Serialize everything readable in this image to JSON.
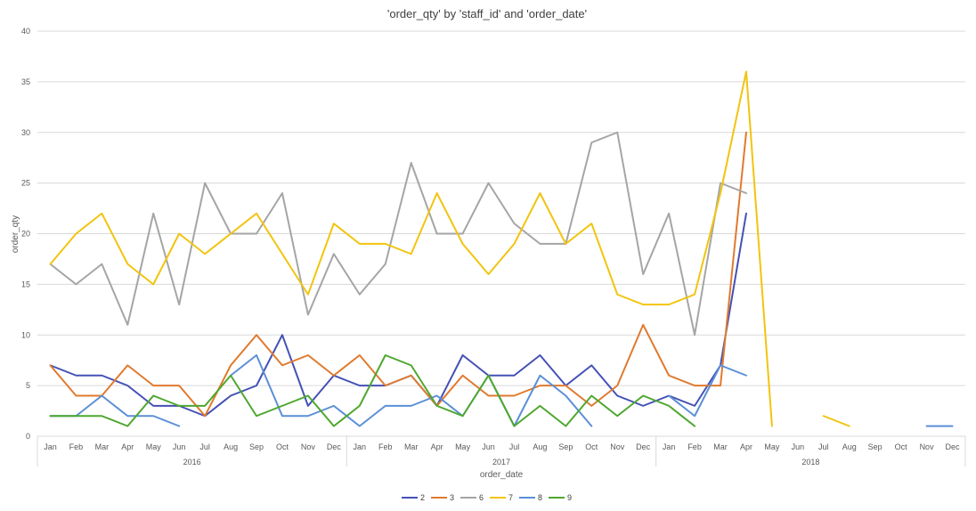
{
  "chart_data": {
    "type": "line",
    "title": "'order_qty' by 'staff_id' and 'order_date'",
    "xlabel": "order_date",
    "ylabel": "order_qty",
    "ylim": [
      0,
      40
    ],
    "yticks": [
      "0",
      "5",
      "10",
      "15",
      "20",
      "25",
      "30",
      "35",
      "40"
    ],
    "months": [
      "Jan",
      "Feb",
      "Mar",
      "Apr",
      "May",
      "Jun",
      "Jul",
      "Aug",
      "Sep",
      "Oct",
      "Nov",
      "Dec"
    ],
    "years": [
      "2016",
      "2017",
      "2018"
    ],
    "grid": true,
    "legend_position": "bottom",
    "series": [
      {
        "name": "2",
        "color": "#4451b5",
        "values": [
          7,
          6,
          6,
          5,
          3,
          3,
          2,
          4,
          5,
          10,
          3,
          6,
          5,
          5,
          6,
          3,
          8,
          6,
          6,
          8,
          5,
          7,
          4,
          3,
          4,
          3,
          7,
          22,
          null,
          null,
          null,
          null,
          null,
          null,
          null,
          null
        ]
      },
      {
        "name": "3",
        "color": "#e07a2e",
        "values": [
          7,
          4,
          4,
          7,
          5,
          5,
          2,
          7,
          10,
          7,
          8,
          6,
          8,
          5,
          6,
          3,
          6,
          4,
          4,
          5,
          5,
          3,
          5,
          11,
          6,
          5,
          5,
          30,
          null,
          null,
          null,
          null,
          null,
          null,
          null,
          null
        ]
      },
      {
        "name": "6",
        "color": "#a5a5a5",
        "values": [
          17,
          15,
          17,
          11,
          22,
          13,
          25,
          20,
          20,
          24,
          12,
          18,
          14,
          17,
          27,
          20,
          20,
          25,
          21,
          19,
          19,
          29,
          30,
          16,
          22,
          10,
          25,
          24,
          null,
          null,
          null,
          null,
          null,
          null,
          null,
          null
        ]
      },
      {
        "name": "7",
        "color": "#f2c40f",
        "values": [
          17,
          20,
          22,
          17,
          15,
          20,
          18,
          20,
          22,
          18,
          14,
          21,
          19,
          19,
          18,
          24,
          19,
          16,
          19,
          24,
          19,
          21,
          14,
          13,
          13,
          14,
          24,
          36,
          1,
          null,
          2,
          1,
          null,
          null,
          null,
          null
        ]
      },
      {
        "name": "8",
        "color": "#5b8fd6",
        "values": [
          2,
          2,
          4,
          2,
          2,
          1,
          null,
          6,
          8,
          2,
          2,
          3,
          1,
          3,
          3,
          4,
          2,
          6,
          1,
          6,
          4,
          1,
          null,
          null,
          4,
          2,
          7,
          6,
          null,
          null,
          null,
          null,
          null,
          null,
          1,
          1
        ]
      },
      {
        "name": "9",
        "color": "#4ea72e",
        "values": [
          2,
          2,
          2,
          1,
          4,
          3,
          3,
          6,
          2,
          3,
          4,
          1,
          3,
          8,
          7,
          3,
          2,
          6,
          1,
          3,
          1,
          4,
          2,
          4,
          3,
          1,
          null,
          null,
          null,
          null,
          null,
          null,
          null,
          null,
          null,
          null
        ]
      }
    ]
  }
}
